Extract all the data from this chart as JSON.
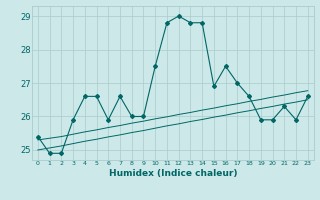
{
  "title": "",
  "xlabel": "Humidex (Indice chaleur)",
  "ylabel": "",
  "background_color": "#cce8e8",
  "grid_color": "#aacccc",
  "line_color": "#006666",
  "x_values": [
    0,
    1,
    2,
    3,
    4,
    5,
    6,
    7,
    8,
    9,
    10,
    11,
    12,
    13,
    14,
    15,
    16,
    17,
    18,
    19,
    20,
    21,
    22,
    23
  ],
  "y_main": [
    25.4,
    24.9,
    24.9,
    25.9,
    26.6,
    26.6,
    25.9,
    26.6,
    26.0,
    26.0,
    27.5,
    28.8,
    29.0,
    28.8,
    28.8,
    26.9,
    27.5,
    27.0,
    26.6,
    25.9,
    25.9,
    26.3,
    25.9,
    26.6
  ],
  "y_trend1": [
    25.3,
    25.35,
    25.4,
    25.47,
    25.54,
    25.6,
    25.67,
    25.73,
    25.8,
    25.86,
    25.93,
    25.99,
    26.06,
    26.12,
    26.19,
    26.25,
    26.32,
    26.38,
    26.45,
    26.51,
    26.58,
    26.64,
    26.71,
    26.77
  ],
  "y_trend2": [
    25.0,
    25.06,
    25.12,
    25.19,
    25.26,
    25.32,
    25.39,
    25.45,
    25.52,
    25.58,
    25.65,
    25.72,
    25.78,
    25.85,
    25.91,
    25.98,
    26.04,
    26.11,
    26.17,
    26.24,
    26.3,
    26.37,
    26.43,
    26.5
  ],
  "ylim": [
    24.7,
    29.3
  ],
  "yticks": [
    25,
    26,
    27,
    28,
    29
  ],
  "xlim": [
    -0.5,
    23.5
  ]
}
